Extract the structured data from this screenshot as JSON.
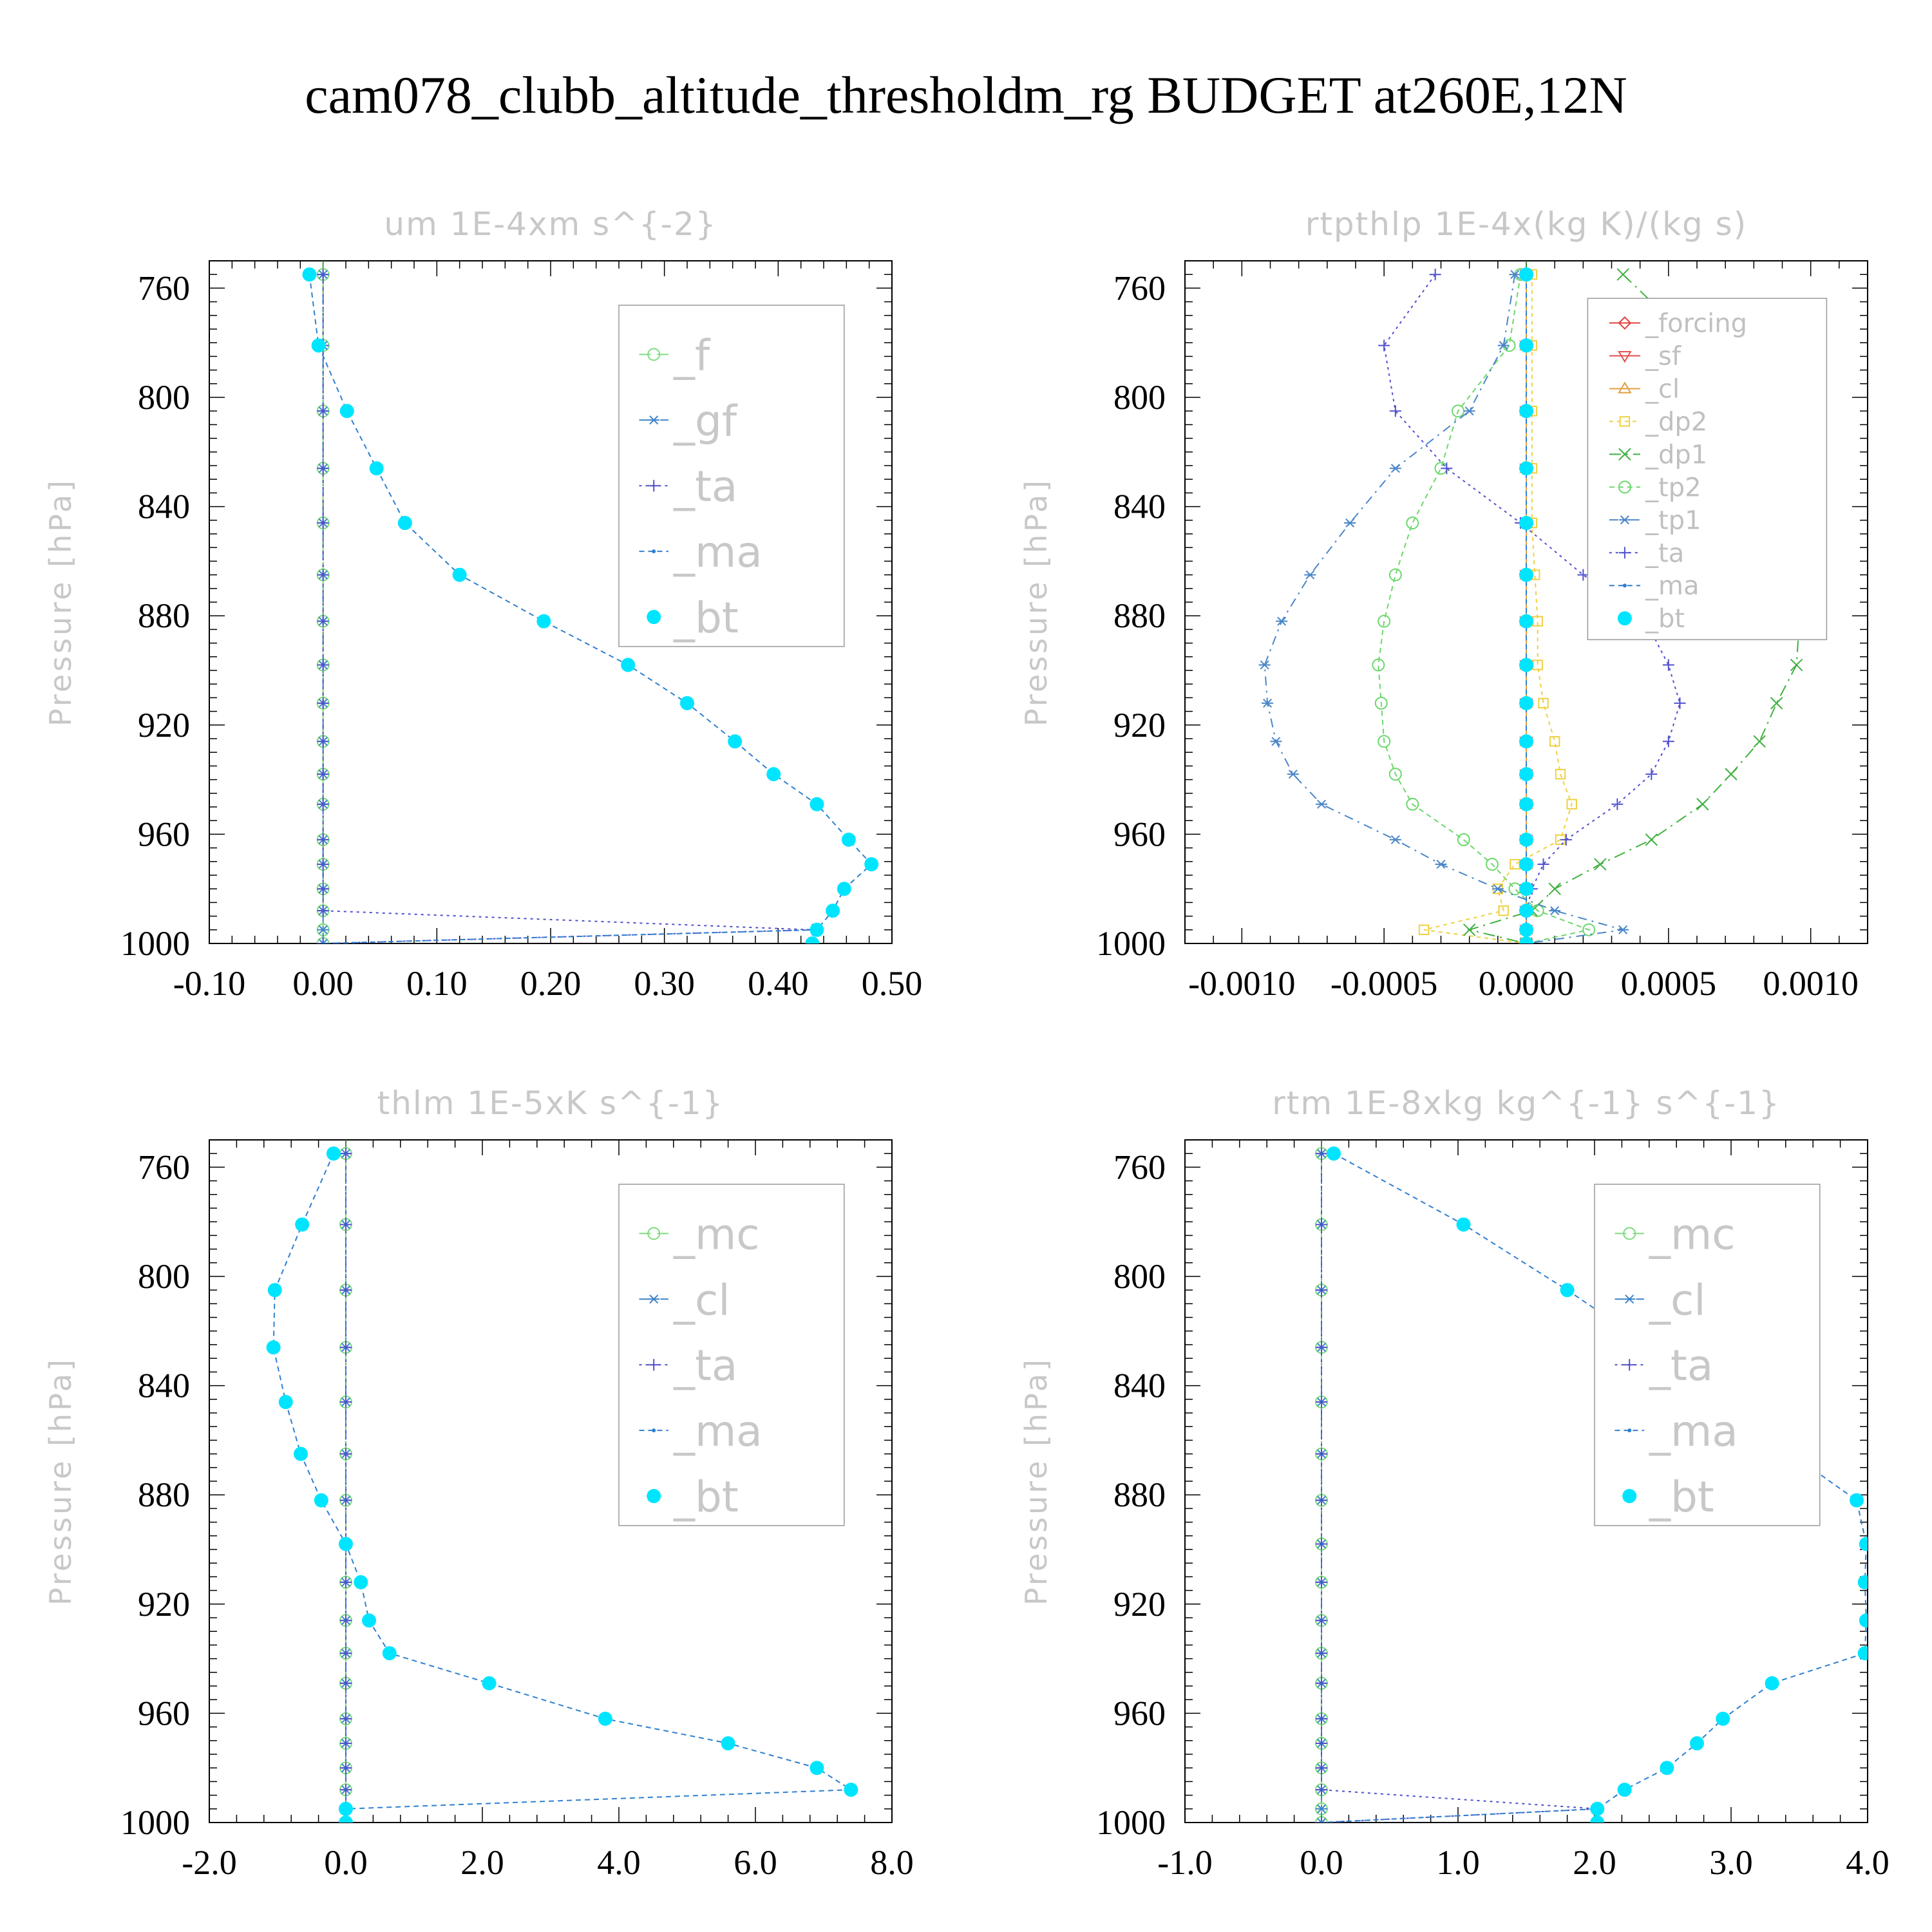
{
  "figure_title": "cam078_clubb_altitude_thresholdm_rg  BUDGET at260E,12N",
  "y_axis_label": "Pressure [hPa]",
  "chart_data": [
    {
      "type": "line",
      "title": "um  1E-4xm s^{-2}",
      "ylabel": "Pressure [hPa]",
      "ylim": [
        1000,
        750
      ],
      "y_ticks": [
        "760",
        "800",
        "840",
        "880",
        "920",
        "960",
        "1000"
      ],
      "xlim": [
        -0.1,
        0.5
      ],
      "x_ticks": [
        "-0.10",
        "0.00",
        "0.10",
        "0.20",
        "0.30",
        "0.40",
        "0.50"
      ],
      "legend_style": "big",
      "y": [
        755,
        781,
        805,
        826,
        846,
        865,
        882,
        898,
        912,
        926,
        938,
        949,
        962,
        971,
        980,
        988,
        995,
        1000
      ],
      "series": [
        {
          "name": "_f",
          "color": "#7fdc7f",
          "dash": "18,10",
          "marker": "circle-open",
          "values": [
            0,
            0,
            0,
            0,
            0,
            0,
            0,
            0,
            0,
            0,
            0,
            0,
            0,
            0,
            0,
            0,
            0,
            0
          ]
        },
        {
          "name": "_gf",
          "color": "#3c82c8",
          "dash": "14,8,3,8",
          "marker": "asterisk",
          "values": [
            0,
            0,
            0,
            0,
            0,
            0,
            0,
            0,
            0,
            0,
            0,
            0,
            0,
            0,
            0,
            0,
            0,
            0
          ]
        },
        {
          "name": "_ta",
          "color": "#5050c8",
          "dash": "4,6",
          "marker": "plus",
          "values": [
            0,
            0,
            0,
            0,
            0,
            0,
            0,
            0,
            0,
            0,
            0,
            0,
            0,
            0,
            0,
            0,
            0.43,
            0
          ]
        },
        {
          "name": "_ma",
          "color": "#2e7fd0",
          "dash": "8,6",
          "marker": "dot",
          "values": [
            -0.012,
            -0.004,
            0.021,
            0.047,
            0.072,
            0.12,
            0.194,
            0.268,
            0.32,
            0.362,
            0.396,
            0.434,
            0.462,
            0.482,
            0.458,
            0.448,
            0.434,
            0
          ]
        },
        {
          "name": "_bt",
          "color": "#00e5ff",
          "dash": "",
          "marker": "filled",
          "values": [
            -0.012,
            -0.004,
            0.021,
            0.047,
            0.072,
            0.12,
            0.194,
            0.268,
            0.32,
            0.362,
            0.396,
            0.434,
            0.462,
            0.482,
            0.458,
            0.448,
            0.434,
            0.43
          ]
        }
      ]
    },
    {
      "type": "line",
      "title": "rtpthlp  1E-4x(kg K)/(kg s)",
      "ylabel": "Pressure [hPa]",
      "ylim": [
        1000,
        750
      ],
      "y_ticks": [
        "760",
        "800",
        "840",
        "880",
        "920",
        "960",
        "1000"
      ],
      "xlim": [
        -0.0012,
        0.0012
      ],
      "x_ticks": [
        "-0.0010",
        "-0.0005",
        "0.0000",
        "0.0005",
        "0.0010"
      ],
      "legend_style": "small",
      "y": [
        755,
        781,
        805,
        826,
        846,
        865,
        882,
        898,
        912,
        926,
        938,
        949,
        962,
        971,
        980,
        988,
        995,
        1000
      ],
      "series": [
        {
          "name": "_forcing",
          "color": "#e04040",
          "dash": "",
          "marker": "diamond",
          "values": [
            0,
            0,
            0,
            0,
            0,
            0,
            0,
            0,
            0,
            0,
            0,
            0,
            0,
            0,
            0,
            0,
            0,
            0
          ]
        },
        {
          "name": "_sf",
          "color": "#e05050",
          "dash": "",
          "marker": "tri-down",
          "values": [
            0,
            0,
            0,
            0,
            0,
            0,
            0,
            0,
            0,
            0,
            0,
            0,
            0,
            0,
            0,
            0,
            0,
            0
          ]
        },
        {
          "name": "_cl",
          "color": "#e0a040",
          "dash": "",
          "marker": "tri-up",
          "values": [
            0,
            0,
            0,
            0,
            0,
            0,
            0,
            0,
            0,
            0,
            0,
            0,
            0,
            0,
            0,
            0,
            0,
            0
          ]
        },
        {
          "name": "_dp2",
          "color": "#f0d040",
          "dash": "6,6",
          "marker": "square",
          "values": [
            2e-05,
            2e-05,
            2e-05,
            2e-05,
            2e-05,
            3e-05,
            4e-05,
            4e-05,
            6e-05,
            0.0001,
            0.00012,
            0.00016,
            0.00012,
            -4e-05,
            -0.0001,
            -8e-05,
            -0.00036,
            0
          ]
        },
        {
          "name": "_dp1",
          "color": "#40b040",
          "dash": "18,8,3,8",
          "marker": "x",
          "values": [
            0.00034,
            0.0006,
            0.00082,
            0.00091,
            0.00094,
            0.00095,
            0.00096,
            0.00095,
            0.00088,
            0.00082,
            0.00072,
            0.00062,
            0.00044,
            0.00026,
            0.0001,
            2e-05,
            -0.0002,
            0
          ]
        },
        {
          "name": "_tp2",
          "color": "#6cd86c",
          "dash": "8,6",
          "marker": "circle-open",
          "values": [
            -2e-05,
            -6e-05,
            -0.00024,
            -0.0003,
            -0.0004,
            -0.00046,
            -0.0005,
            -0.00052,
            -0.00051,
            -0.0005,
            -0.00046,
            -0.0004,
            -0.00022,
            -0.00012,
            -4e-05,
            4e-05,
            0.00022,
            0
          ]
        },
        {
          "name": "_tp1",
          "color": "#4a86c8",
          "dash": "14,8,3,8",
          "marker": "asterisk",
          "values": [
            -4e-05,
            -8e-05,
            -0.0002,
            -0.00046,
            -0.00062,
            -0.00076,
            -0.00086,
            -0.00092,
            -0.00091,
            -0.00088,
            -0.00082,
            -0.00072,
            -0.00046,
            -0.0003,
            -0.0001,
            0.0001,
            0.00034,
            0
          ]
        },
        {
          "name": "_ta",
          "color": "#5050d0",
          "dash": "4,6",
          "marker": "plus",
          "values": [
            -0.00032,
            -0.0005,
            -0.00046,
            -0.00028,
            -2e-05,
            0.0002,
            0.00042,
            0.0005,
            0.00054,
            0.0005,
            0.00044,
            0.00032,
            0.00014,
            6e-05,
            2e-05,
            0,
            0,
            0
          ]
        },
        {
          "name": "_ma",
          "color": "#2e7fd0",
          "dash": "8,6",
          "marker": "dot",
          "values": [
            0,
            0,
            0,
            0,
            0,
            0,
            0,
            0,
            0,
            0,
            0,
            0,
            0,
            0,
            0,
            0,
            0,
            0
          ]
        },
        {
          "name": "_bt",
          "color": "#00e5ff",
          "dash": "",
          "marker": "filled",
          "values": [
            0,
            0,
            0,
            0,
            0,
            0,
            0,
            0,
            0,
            0,
            0,
            0,
            0,
            0,
            0,
            0,
            0,
            0
          ]
        }
      ]
    },
    {
      "type": "line",
      "title": "thlm  1E-5xK s^{-1}",
      "ylabel": "Pressure [hPa]",
      "ylim": [
        1000,
        750
      ],
      "y_ticks": [
        "760",
        "800",
        "840",
        "880",
        "920",
        "960",
        "1000"
      ],
      "xlim": [
        -2.0,
        8.0
      ],
      "x_ticks": [
        "-2.0",
        "0.0",
        "2.0",
        "4.0",
        "6.0",
        "8.0"
      ],
      "legend_style": "big",
      "y": [
        755,
        781,
        805,
        826,
        846,
        865,
        882,
        898,
        912,
        926,
        938,
        949,
        962,
        971,
        980,
        988,
        995,
        1000
      ],
      "series": [
        {
          "name": "_mc",
          "color": "#7fdc7f",
          "dash": "18,10",
          "marker": "circle-open",
          "values": [
            0,
            0,
            0,
            0,
            0,
            0,
            0,
            0,
            0,
            0,
            0,
            0,
            0,
            0,
            0,
            0,
            0,
            0
          ]
        },
        {
          "name": "_cl",
          "color": "#3c82c8",
          "dash": "14,8,3,8",
          "marker": "asterisk",
          "values": [
            0,
            0,
            0,
            0,
            0,
            0,
            0,
            0,
            0,
            0,
            0,
            0,
            0,
            0,
            0,
            0,
            0,
            0
          ]
        },
        {
          "name": "_ta",
          "color": "#5050c8",
          "dash": "4,6",
          "marker": "plus",
          "values": [
            0,
            0,
            0,
            0,
            0,
            0,
            0,
            0,
            0,
            0,
            0,
            0,
            0,
            0,
            0,
            0,
            0,
            0
          ]
        },
        {
          "name": "_ma",
          "color": "#2e7fd0",
          "dash": "8,6",
          "marker": "dot",
          "values": [
            -0.18,
            -0.64,
            -1.04,
            -1.06,
            -0.88,
            -0.66,
            -0.36,
            0.0,
            0.22,
            0.34,
            0.64,
            2.1,
            3.8,
            5.6,
            6.9,
            7.4,
            0,
            0
          ]
        },
        {
          "name": "_bt",
          "color": "#00e5ff",
          "dash": "",
          "marker": "filled",
          "values": [
            -0.18,
            -0.64,
            -1.04,
            -1.06,
            -0.88,
            -0.66,
            -0.36,
            0.0,
            0.22,
            0.34,
            0.64,
            2.1,
            3.8,
            5.6,
            6.9,
            7.4,
            0,
            0
          ]
        }
      ]
    },
    {
      "type": "line",
      "title": "rtm  1E-8xkg kg^{-1} s^{-1}",
      "ylabel": "Pressure [hPa]",
      "ylim": [
        1000,
        750
      ],
      "y_ticks": [
        "760",
        "800",
        "840",
        "880",
        "920",
        "960",
        "1000"
      ],
      "xlim": [
        -1.0,
        4.0
      ],
      "x_ticks": [
        "-1.0",
        "0.0",
        "1.0",
        "2.0",
        "3.0",
        "4.0"
      ],
      "legend_style": "big",
      "y": [
        755,
        781,
        805,
        826,
        846,
        865,
        882,
        898,
        912,
        926,
        938,
        949,
        962,
        971,
        980,
        988,
        995,
        1000
      ],
      "series": [
        {
          "name": "_mc",
          "color": "#7fdc7f",
          "dash": "18,10",
          "marker": "circle-open",
          "values": [
            0,
            0,
            0,
            0,
            0,
            0,
            0,
            0,
            0,
            0,
            0,
            0,
            0,
            0,
            0,
            0,
            0,
            0
          ]
        },
        {
          "name": "_cl",
          "color": "#3c82c8",
          "dash": "14,8,3,8",
          "marker": "asterisk",
          "values": [
            0,
            0,
            0,
            0,
            0,
            0,
            0,
            0,
            0,
            0,
            0,
            0,
            0,
            0,
            0,
            0,
            0,
            0
          ]
        },
        {
          "name": "_ta",
          "color": "#5050c8",
          "dash": "4,6",
          "marker": "plus",
          "values": [
            0,
            0,
            0,
            0,
            0,
            0,
            0,
            0,
            0,
            0,
            0,
            0,
            0,
            0,
            0,
            0,
            2.02,
            0
          ]
        },
        {
          "name": "_ma",
          "color": "#2e7fd0",
          "dash": "8,6",
          "marker": "dot",
          "values": [
            0.09,
            1.04,
            1.8,
            2.42,
            2.82,
            3.44,
            3.92,
            3.99,
            3.98,
            3.99,
            3.98,
            3.3,
            2.94,
            2.75,
            2.53,
            2.22,
            2.02,
            0
          ]
        },
        {
          "name": "_bt",
          "color": "#00e5ff",
          "dash": "",
          "marker": "filled",
          "values": [
            0.09,
            1.04,
            1.8,
            2.42,
            2.82,
            3.44,
            3.92,
            3.99,
            3.98,
            3.99,
            3.98,
            3.3,
            2.94,
            2.75,
            2.53,
            2.22,
            2.02,
            2.02
          ]
        }
      ]
    }
  ]
}
